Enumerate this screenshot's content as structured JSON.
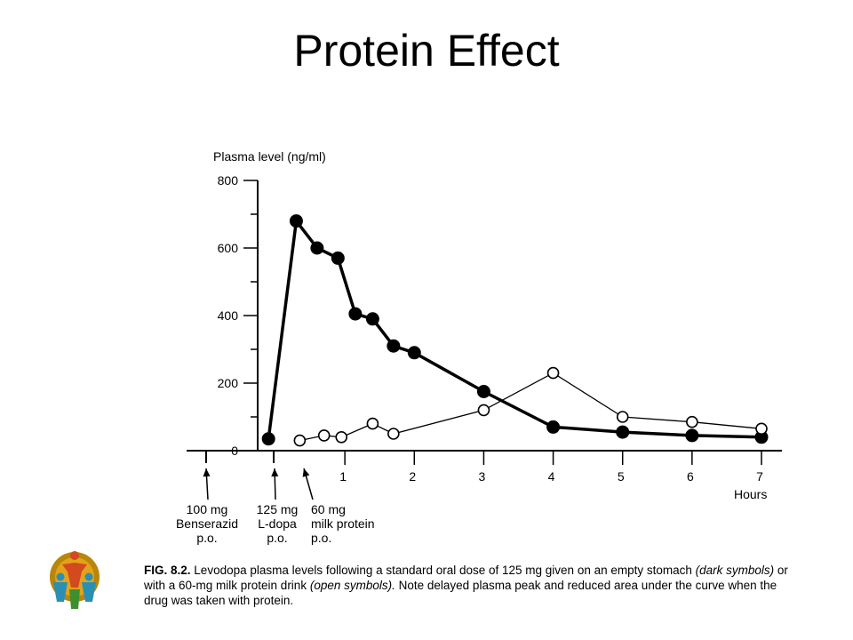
{
  "slide": {
    "title": "Protein Effect"
  },
  "colors": {
    "ink": "#000000",
    "background": "#ffffff"
  },
  "doses": [
    {
      "lines": [
        "100 mg",
        "Benserazid",
        "p.o."
      ]
    },
    {
      "lines": [
        "125 mg",
        "L-dopa",
        "p.o."
      ]
    },
    {
      "lines": [
        "60 mg",
        "milk protein",
        "p.o."
      ]
    }
  ],
  "caption": {
    "fig_label": "FIG. 8.2.",
    "part1": "Levodopa plasma levels following a standard oral dose of 125 mg given on an empty stomach ",
    "dark": "(dark symbols)",
    "part2": " or with a 60-mg milk protein drink ",
    "open": "(open symbols).",
    "part3": " Note delayed plasma peak and reduced area under the curve when the drug was taken with protein."
  },
  "logo": {
    "icon": "people-group-logo-icon"
  },
  "chart_data": {
    "type": "line",
    "title": "",
    "ylabel": "Plasma level (ng/ml)",
    "xlabel": "Hours",
    "ylim": [
      0,
      800
    ],
    "xlim": [
      -1,
      7.2
    ],
    "yticks": [
      0,
      200,
      400,
      600,
      800
    ],
    "xticks": [
      1,
      2,
      3,
      4,
      5,
      6,
      7
    ],
    "grid": false,
    "legend": "none",
    "series": [
      {
        "marker": "filled",
        "x": [
          -0.1,
          0.3,
          0.6,
          0.9,
          1.15,
          1.4,
          1.7,
          2.0,
          3.0,
          4.0,
          5.0,
          6.0,
          7.0
        ],
        "values": [
          35,
          680,
          600,
          570,
          405,
          390,
          310,
          290,
          175,
          70,
          55,
          45,
          40
        ]
      },
      {
        "marker": "open",
        "x": [
          0.35,
          0.7,
          0.95,
          1.4,
          1.7,
          3.0,
          4.0,
          5.0,
          6.0,
          7.0
        ],
        "values": [
          30,
          45,
          40,
          80,
          50,
          120,
          230,
          100,
          85,
          65
        ]
      }
    ]
  }
}
